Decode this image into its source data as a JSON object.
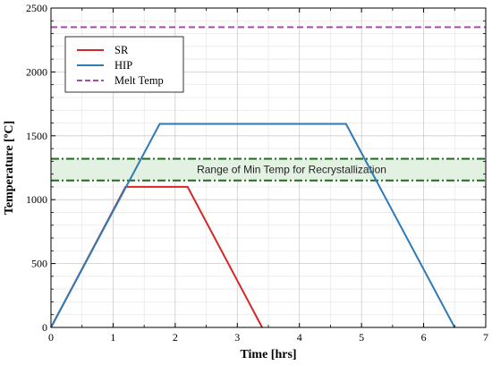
{
  "chart_data": {
    "type": "line",
    "title": "",
    "xlabel": "Time [hrs]",
    "ylabel": "Temperature [ºC]",
    "xlim": [
      0,
      7
    ],
    "ylim": [
      0,
      2500
    ],
    "xticks": [
      0,
      1,
      2,
      3,
      4,
      5,
      6,
      7
    ],
    "yticks": [
      0,
      500,
      1000,
      1500,
      2000,
      2500
    ],
    "grid": true,
    "minor_grid": true,
    "legend_position": "top-left",
    "series": [
      {
        "name": "SR",
        "color": "#d62728",
        "style": "solid",
        "x": [
          0,
          1.2,
          2.2,
          3.4
        ],
        "y": [
          0,
          1100,
          1100,
          0
        ]
      },
      {
        "name": "HIP",
        "color": "#2e7bb6",
        "style": "solid",
        "x": [
          0.0,
          1.75,
          4.75,
          6.5
        ],
        "y": [
          0,
          1593,
          1593,
          0
        ]
      },
      {
        "name": "Melt Temp",
        "color": "#a64ca6",
        "style": "dashed",
        "x": [
          0,
          7
        ],
        "y": [
          2350,
          2350
        ]
      }
    ],
    "bands": [
      {
        "label": "Range of Min Temp for Recrystallization",
        "y_low": 1150,
        "y_high": 1320,
        "fill": "#e3f1e3",
        "line_color": "#1e6b1e"
      }
    ]
  }
}
